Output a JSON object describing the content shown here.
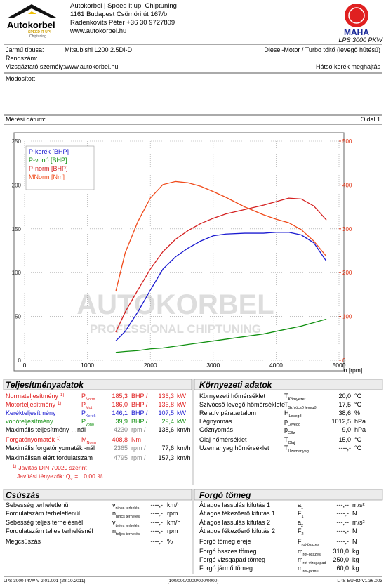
{
  "header": {
    "company": [
      "Autokorbel | Speed it up! Chiptuning",
      "1161 Budapest Csömöri út 167/b",
      "Radenkovits Péter +36 30 9727809",
      "www.autokorbel.hu"
    ],
    "logo": {
      "name": "Autokorbel",
      "slogan": "SPEED IT UP!",
      "sub": "Chiptuning"
    },
    "maha": "MAHA",
    "model": "LPS 3000 PKW"
  },
  "info": {
    "vehicle_label": "Jármű típusa:",
    "vehicle": "Mitsubishi L200 2.5DI-D",
    "engine": "Diesel-Motor / Turbo töltő (levegő hűtésű)",
    "plate_label": "Rendszám:",
    "examiner": "Vizsgáztató személy:www.autokorbel.hu",
    "drive": "Hátsó kerék meghajtás",
    "remark": "Módosított",
    "date_label": "Mérési dátum:",
    "page": "Oldal 1"
  },
  "chart_data": {
    "type": "line",
    "xlabel": "n [rpm]",
    "watermark": [
      "AUTOKORBEL",
      "PROFESSIONAL CHIPTUNING"
    ],
    "x": [
      1450,
      1600,
      1800,
      2000,
      2200,
      2400,
      2600,
      2800,
      3000,
      3200,
      3500,
      3800,
      4000,
      4200,
      4400,
      4600,
      4800
    ],
    "series": [
      {
        "name": "P-kerék [BHP]",
        "color": "#1a1ad0",
        "values": [
          22,
          33,
          55,
          80,
          104,
          118,
          128,
          136,
          142,
          144,
          145,
          145,
          146,
          146,
          143,
          134,
          113
        ]
      },
      {
        "name": "P-vonó [BHP]",
        "color": "#109010",
        "values": [
          9,
          10,
          11,
          13,
          14,
          16,
          18,
          20,
          22,
          24,
          27,
          30,
          33,
          36,
          39,
          43,
          47
        ]
      },
      {
        "name": "P-norm [BHP]",
        "color": "#d42020",
        "values": [
          32,
          55,
          80,
          104,
          124,
          138,
          148,
          156,
          162,
          167,
          172,
          177,
          181,
          185,
          184,
          176,
          160
        ]
      },
      {
        "name": "MNorm [Nm]",
        "color": "#f04a1a",
        "axis": "y2",
        "values": [
          157,
          245,
          316,
          370,
          401,
          408,
          405,
          397,
          385,
          372,
          350,
          332,
          322,
          314,
          298,
          272,
          237
        ]
      }
    ],
    "xlim": [
      0,
      5000
    ],
    "xticks": [
      0,
      1000,
      2000,
      3000,
      4000,
      5000
    ],
    "ylim": [
      0,
      250
    ],
    "yticks": [
      0,
      50,
      100,
      150,
      200,
      250
    ],
    "y2lim": [
      0,
      500
    ],
    "y2ticks": [
      0,
      100,
      200,
      300,
      400,
      500
    ],
    "y2color": "#e03010",
    "grid": true,
    "legend": "top-left"
  },
  "performance": {
    "title": "Teljesítményadatok",
    "rows": [
      {
        "label": "Normateljesítmény",
        "note": "1)",
        "sym": "P",
        "sub": "Norm",
        "v1": "185,3",
        "u1": "BHP /",
        "v2": "136,3",
        "u2": "kW",
        "color": "#e02020"
      },
      {
        "label": "Motorteljesítmény",
        "note": "1)",
        "sym": "P",
        "sub": "Mot",
        "v1": "186,0",
        "u1": "BHP /",
        "v2": "136,8",
        "u2": "kW",
        "color": "#e02020"
      },
      {
        "label": "Kerékteljesítmény",
        "sym": "P",
        "sub": "Kerék",
        "v1": "146,1",
        "u1": "BHP /",
        "v2": "107,5",
        "u2": "kW",
        "color": "#1a1ad0"
      },
      {
        "label": "vonóteljesítmény",
        "sym": "P",
        "sub": "vonó",
        "v1": "39,9",
        "u1": "BHP /",
        "v2": "29,4",
        "u2": "kW",
        "color": "#109010"
      },
      {
        "label": "Maximális teljesítmény …nál",
        "v1": "4230",
        "u1": "rpm /",
        "v2": "138,6",
        "u2": "km/h",
        "muted": true
      },
      {
        "label": "Forgatónyomaték",
        "note": "1)",
        "sym": "M",
        "sub": "Norm",
        "v1": "408,8",
        "u1": "Nm",
        "color": "#e02020"
      },
      {
        "label": "Maximális forgatónyomaték -nál",
        "v1": "2365",
        "u1": "rpm /",
        "v2": "77,6",
        "u2": "km/h",
        "muted": true
      },
      {
        "label": "Maximálisan elért fordulatszám",
        "v1": "4795",
        "u1": "rpm /",
        "v2": "157,3",
        "u2": "km/h",
        "muted": true
      }
    ],
    "din": {
      "note": "1)",
      "label": "Javítás DIN 70020 szerint"
    },
    "correction": {
      "label": "Javítási tényezők: Q",
      "sub": "v",
      "eq": "=",
      "value": "0,00",
      "unit": "%"
    }
  },
  "environment": {
    "title": "Környezeti adatok",
    "rows": [
      {
        "label": "Környezeti hőmérséklet",
        "sym": "T",
        "sub": "Környezet",
        "v1": "20,0",
        "u1": "°C"
      },
      {
        "label": "Szívócső levegő hőmérséklete",
        "sym": "T",
        "sub": "Szívócső levegő",
        "v1": "17,5",
        "u1": "°C"
      },
      {
        "label": "Relatív páratartalom",
        "sym": "H",
        "sub": "Levegő",
        "v1": "38,6",
        "u1": "%"
      },
      {
        "label": "Légnyomás",
        "sym": "p",
        "sub": "Levegő",
        "v1": "1012,5",
        "u1": "hPa"
      },
      {
        "label": "Gőznyomás",
        "sym": "p",
        "sub": "Gőz",
        "v1": "9,0",
        "u1": "hPa"
      },
      {
        "label": "Olaj hőmérséklet",
        "sym": "T",
        "sub": "Olaj",
        "v1": "15,0",
        "u1": "°C"
      },
      {
        "label": "Üzemanyag hőmérséklet",
        "sym": "T",
        "sub": "Üzemanyag",
        "v1": "----,-",
        "u1": "°C"
      }
    ]
  },
  "slip": {
    "title": "Csúszás",
    "rows": [
      {
        "label": "Sebesség terheletlenül",
        "sym": "v",
        "sub": "nincs terhelés",
        "v1": "----,-",
        "u1": "km/h"
      },
      {
        "label": "Fordulatszám terheletlenül",
        "sym": "n",
        "sub": "nincs terhelés",
        "v1": "----,-",
        "u1": "rpm"
      },
      {
        "label": "Sebesség teljes terhelésnél",
        "sym": "v",
        "sub": "teljes terhelés",
        "v1": "----,-",
        "u1": "km/h"
      },
      {
        "label": "Fordulatszám teljes terhelésnél",
        "sym": "n",
        "sub": "teljes terhelés",
        "v1": "----,-",
        "u1": "rpm"
      },
      {
        "label": "Megcsúszás",
        "v1": "----,-",
        "u1": "%"
      }
    ]
  },
  "rotating": {
    "title": "Forgó tömeg",
    "rows": [
      {
        "label": "Átlagos lassulás kifutás 1",
        "sym": "a",
        "sub": "1",
        "v1": "---,--",
        "u1": "m/s²"
      },
      {
        "label": "Átlagos fékezőerő kifutás 1",
        "sym": "F",
        "sub": "1",
        "v1": "----,-",
        "u1": "N"
      },
      {
        "label": "Átlagos lassulás kifutás 2",
        "sym": "a",
        "sub": "2",
        "v1": "---,--",
        "u1": "m/s²"
      },
      {
        "label": "Átlagos fékezőerő kifutás 2",
        "sym": "F",
        "sub": "2",
        "v1": "----,-",
        "u1": "N"
      },
      {
        "label": "Forgó tömeg ereje",
        "sym": "F",
        "sub": "rot-összes",
        "v1": "----,-",
        "u1": "N"
      },
      {
        "label": "Forgó összes tömeg",
        "sym": "m",
        "sub": "rot-összes",
        "v1": "310,0",
        "u1": "kg"
      },
      {
        "label": "Forgó vizsgapad tömeg",
        "sym": "m",
        "sub": "rot-vizsgapad",
        "v1": "250,0",
        "u1": "kg"
      },
      {
        "label": "Forgó jármű tömeg",
        "sym": "m",
        "sub": "rot-jármű",
        "v1": "60,0",
        "u1": "kg"
      }
    ]
  },
  "footer": [
    "LPS 3000 PKW V 2.01.001 (28.10.2011)",
    "(100/000/0000/000/0000)",
    "LPS-EURO V1.36.003"
  ]
}
